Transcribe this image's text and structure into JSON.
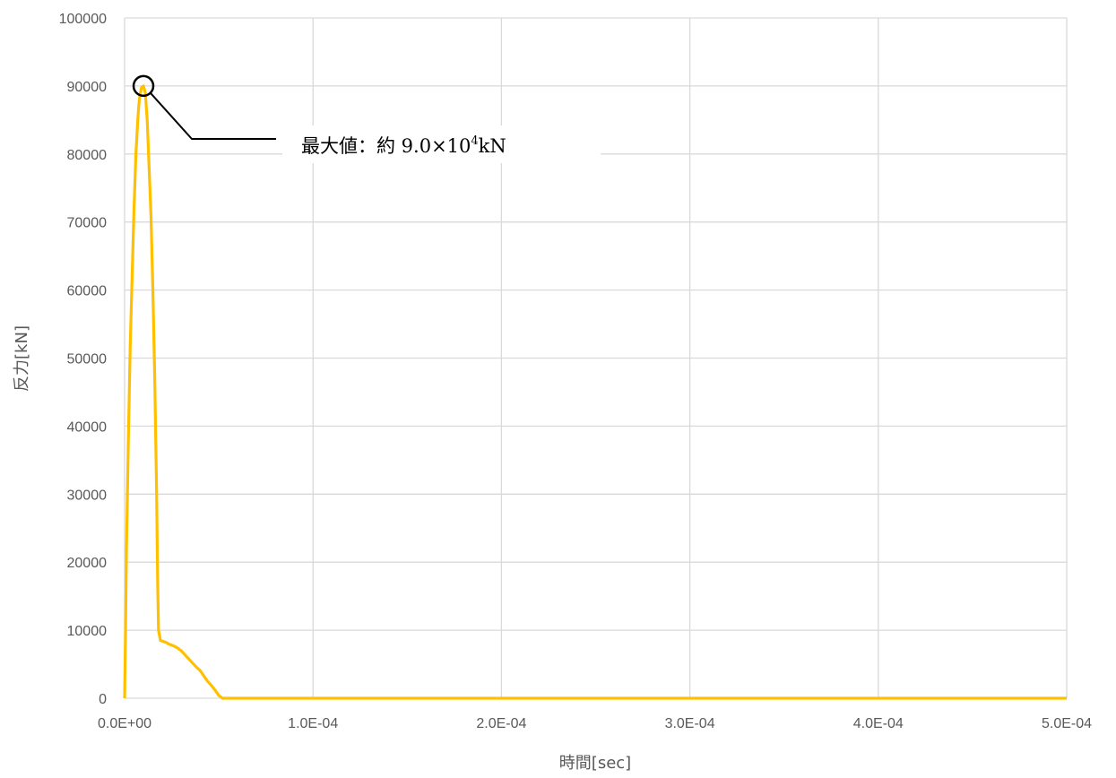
{
  "chart_data": {
    "type": "line",
    "xlabel": "時間[sec]",
    "ylabel": "反力[kN]",
    "xlim": [
      0,
      0.0005
    ],
    "ylim": [
      0,
      100000
    ],
    "x_ticks": [
      "0.0E+00",
      "1.0E-04",
      "2.0E-04",
      "3.0E-04",
      "4.0E-04",
      "5.0E-04"
    ],
    "y_ticks": [
      "0",
      "10000",
      "20000",
      "30000",
      "40000",
      "50000",
      "60000",
      "70000",
      "80000",
      "90000",
      "100000"
    ],
    "grid": true,
    "series": [
      {
        "color": "#FFC000",
        "x": [
          0,
          5e-07,
          1e-06,
          2e-06,
          3e-06,
          4e-06,
          5e-06,
          6e-06,
          7e-06,
          7.5e-06,
          8e-06,
          9e-06,
          1e-05,
          1.1e-05,
          1.2e-05,
          1.3e-05,
          1.4e-05,
          1.5e-05,
          1.6e-05,
          1.7e-05,
          1.75e-05,
          1.8e-05,
          1.9e-05,
          2e-05,
          2.2e-05,
          2.4e-05,
          2.6e-05,
          2.8e-05,
          3e-05,
          3.2e-05,
          3.4e-05,
          3.6e-05,
          3.8e-05,
          4e-05,
          4.2e-05,
          4.4e-05,
          4.6e-05,
          4.8e-05,
          5e-05,
          5.2e-05,
          5.4e-05,
          5.6e-05,
          5.7e-05,
          5.75e-05,
          6e-05,
          8e-05,
          0.0001,
          0.00015,
          0.0002,
          0.00025,
          0.0003,
          0.00035,
          0.0004,
          0.00045,
          0.0005
        ],
        "y": [
          0,
          10000,
          22000,
          38000,
          52000,
          62000,
          72000,
          80000,
          85000,
          87000,
          88500,
          89800,
          90000,
          89000,
          85000,
          78000,
          71000,
          60000,
          47000,
          30000,
          18000,
          10000,
          8500,
          8400,
          8200,
          7900,
          7700,
          7400,
          7000,
          6400,
          5800,
          5200,
          4600,
          4100,
          3300,
          2500,
          1900,
          1200,
          400,
          0,
          0,
          0,
          0,
          0,
          0,
          0,
          0,
          0,
          0,
          0,
          0,
          0,
          0,
          0,
          0
        ]
      }
    ],
    "annotation": {
      "text": "最大値：約 9.0×10",
      "sup": "4",
      "unit": "kN",
      "point_x": 1e-05,
      "point_y": 90000
    }
  }
}
